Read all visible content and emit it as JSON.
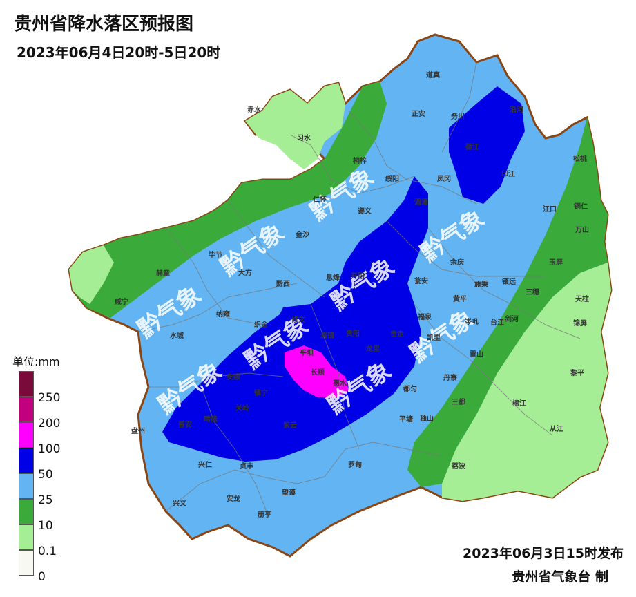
{
  "title": "贵州省降水落区预报图",
  "subtitle": "2023年06月4日20时-5日20时",
  "legend": {
    "unit": "单位:mm",
    "classes": [
      {
        "label": "250",
        "color": "#7a0a3a"
      },
      {
        "label": "200",
        "color": "#c0007e"
      },
      {
        "label": "100",
        "color": "#ff00ff"
      },
      {
        "label": "50",
        "color": "#0000e6"
      },
      {
        "label": "25",
        "color": "#62b4f2"
      },
      {
        "label": "10",
        "color": "#3aaa3a"
      },
      {
        "label": "0.1",
        "color": "#a6ee96"
      },
      {
        "label": "0",
        "color": "#f8f8f2"
      }
    ]
  },
  "issued": "2023年06月3日15时发布",
  "maker": "贵州省气象台 制",
  "watermark": "黔气象",
  "cities": [
    "赤水",
    "习水",
    "道真",
    "正安",
    "务川",
    "沿河",
    "桐梓",
    "绥阳",
    "凤冈",
    "德江",
    "印江",
    "松桃",
    "仁怀",
    "湄潭",
    "江口",
    "铜仁",
    "万山",
    "毕节",
    "金沙",
    "遵义",
    "余庆",
    "玉屏",
    "赫章",
    "大方",
    "黔西",
    "息烽",
    "瓮安",
    "施秉",
    "镇远",
    "三穗",
    "天柱",
    "威宁",
    "纳雍",
    "开阳",
    "黄平",
    "锦屏",
    "织金",
    "修文",
    "福泉",
    "岑巩",
    "台江",
    "剑河",
    "水城",
    "清镇",
    "贵阳",
    "贵定",
    "凯里",
    "雷山",
    "黎平",
    "普安",
    "平坝",
    "龙里",
    "丹寨",
    "安顺",
    "长顺",
    "惠水",
    "都匀",
    "三都",
    "榕江",
    "晴隆",
    "镇宁",
    "关岭",
    "紫云",
    "平塘",
    "独山",
    "从江",
    "盘州",
    "兴仁",
    "贞丰",
    "罗甸",
    "荔波",
    "兴义",
    "安龙",
    "望谟",
    "册亨"
  ]
}
